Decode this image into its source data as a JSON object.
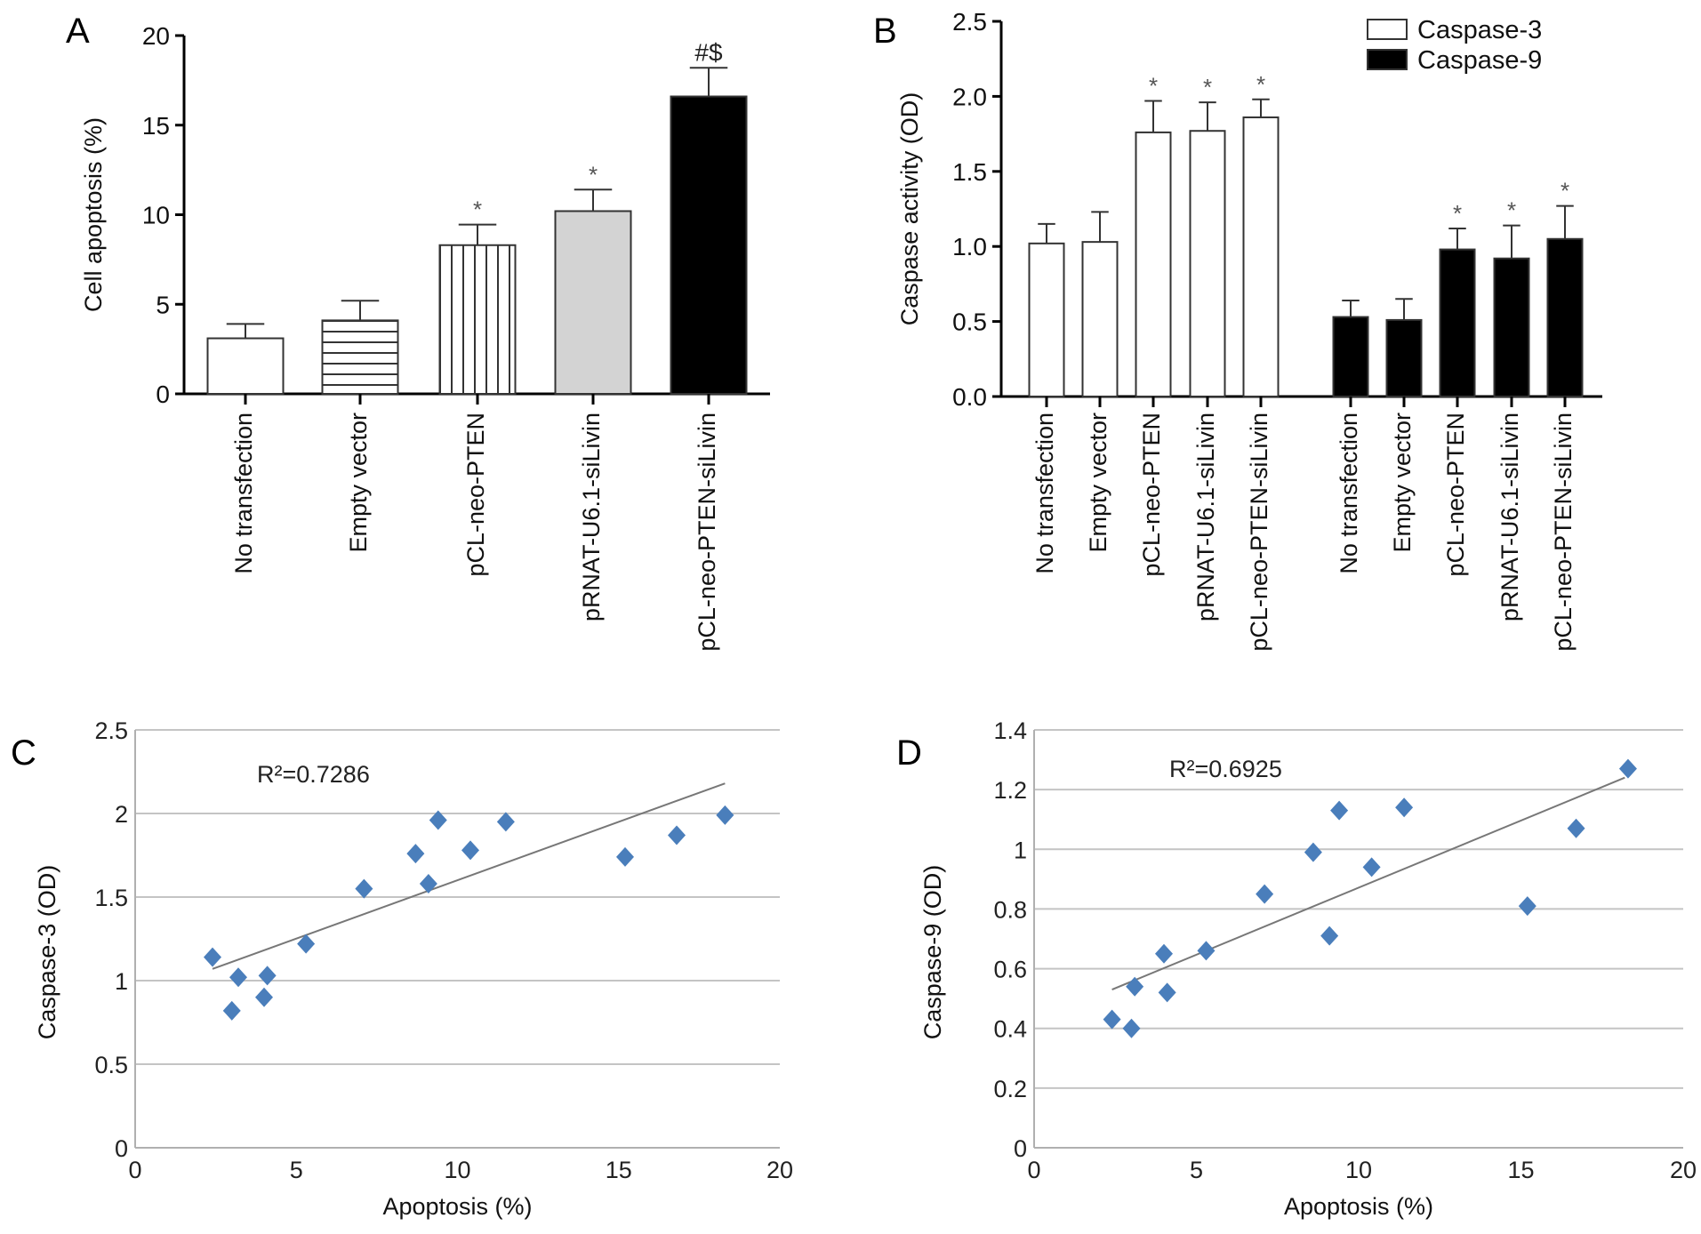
{
  "panels": [
    "A",
    "B",
    "C",
    "D"
  ],
  "chart_data": [
    {
      "panel": "A",
      "type": "bar",
      "ylabel": "Cell apoptosis (%)",
      "ylim": [
        0,
        20
      ],
      "yticks": [
        "0",
        "5",
        "10",
        "15",
        "20"
      ],
      "categories": [
        "No transfection",
        "Empty vector",
        "pCL-neo-PTEN",
        "pRNAT-U6.1-siLivin",
        "pCL-neo-PTEN-siLivin"
      ],
      "values": [
        3.1,
        4.1,
        8.3,
        10.2,
        16.6
      ],
      "errors": [
        0.8,
        1.1,
        1.15,
        1.2,
        1.6
      ],
      "fills": [
        "white",
        "horizontal-stripes",
        "vertical-stripes",
        "#d3d3d3",
        "#000000"
      ],
      "annotations": [
        "",
        "",
        "*",
        "*",
        "#$"
      ]
    },
    {
      "panel": "B",
      "type": "bar",
      "ylabel": "Caspase activity (OD)",
      "ylim": [
        0,
        2.5
      ],
      "yticks": [
        "0.0",
        "0.5",
        "1.0",
        "1.5",
        "2.0",
        "2.5"
      ],
      "categories": [
        "No transfection",
        "Empty vector",
        "pCL-neo-PTEN",
        "pRNAT-U6.1-siLivin",
        "pCL-neo-PTEN-siLivin"
      ],
      "legend_position": "top-right",
      "series": [
        {
          "name": "Caspase-3",
          "color": "#ffffff",
          "values": [
            1.02,
            1.03,
            1.76,
            1.77,
            1.86
          ],
          "errors": [
            0.13,
            0.2,
            0.21,
            0.19,
            0.12
          ],
          "annotations": [
            "",
            "",
            "*",
            "*",
            "*"
          ]
        },
        {
          "name": "Caspase-9",
          "color": "#000000",
          "values": [
            0.53,
            0.51,
            0.98,
            0.92,
            1.05
          ],
          "errors": [
            0.11,
            0.14,
            0.14,
            0.22,
            0.22
          ],
          "annotations": [
            "",
            "",
            "*",
            "*",
            "*"
          ]
        }
      ]
    },
    {
      "panel": "C",
      "type": "scatter",
      "xlabel": "Apoptosis (%)",
      "ylabel": "Caspase-3 (OD)",
      "xlim": [
        0,
        20
      ],
      "ylim": [
        0,
        2.5
      ],
      "xticks": [
        "0",
        "5",
        "10",
        "15",
        "20"
      ],
      "yticks": [
        "0",
        "0.5",
        "1",
        "1.5",
        "2",
        "2.5"
      ],
      "grid": true,
      "marker_color": "#4a7ebb",
      "annotation": "R²=0.7286",
      "trendline": {
        "x": [
          2.4,
          18.3
        ],
        "y": [
          1.07,
          2.18
        ]
      },
      "points": [
        [
          2.4,
          1.14
        ],
        [
          3.2,
          1.02
        ],
        [
          3.0,
          0.82
        ],
        [
          4.1,
          1.03
        ],
        [
          4.0,
          0.9
        ],
        [
          5.3,
          1.22
        ],
        [
          7.1,
          1.55
        ],
        [
          8.7,
          1.76
        ],
        [
          9.1,
          1.58
        ],
        [
          9.4,
          1.96
        ],
        [
          10.4,
          1.78
        ],
        [
          11.5,
          1.95
        ],
        [
          15.2,
          1.74
        ],
        [
          16.8,
          1.87
        ],
        [
          18.3,
          1.99
        ]
      ]
    },
    {
      "panel": "D",
      "type": "scatter",
      "xlabel": "Apoptosis (%)",
      "ylabel": "Caspase-9 (OD)",
      "xlim": [
        0,
        20
      ],
      "ylim": [
        0,
        1.4
      ],
      "xticks": [
        "0",
        "5",
        "10",
        "15",
        "20"
      ],
      "yticks": [
        "0",
        "0.2",
        "0.4",
        "0.6",
        "0.8",
        "1",
        "1.2",
        "1.4"
      ],
      "grid": true,
      "marker_color": "#4a7ebb",
      "annotation": "R²=0.6925",
      "trendline": {
        "x": [
          2.4,
          18.2
        ],
        "y": [
          0.53,
          1.24
        ]
      },
      "points": [
        [
          2.4,
          0.43
        ],
        [
          3.0,
          0.4
        ],
        [
          3.1,
          0.54
        ],
        [
          4.0,
          0.65
        ],
        [
          4.1,
          0.52
        ],
        [
          5.3,
          0.66
        ],
        [
          7.1,
          0.85
        ],
        [
          8.6,
          0.99
        ],
        [
          9.1,
          0.71
        ],
        [
          9.4,
          1.13
        ],
        [
          10.4,
          0.94
        ],
        [
          11.4,
          1.14
        ],
        [
          15.2,
          0.81
        ],
        [
          16.7,
          1.07
        ],
        [
          18.3,
          1.27
        ]
      ]
    }
  ]
}
